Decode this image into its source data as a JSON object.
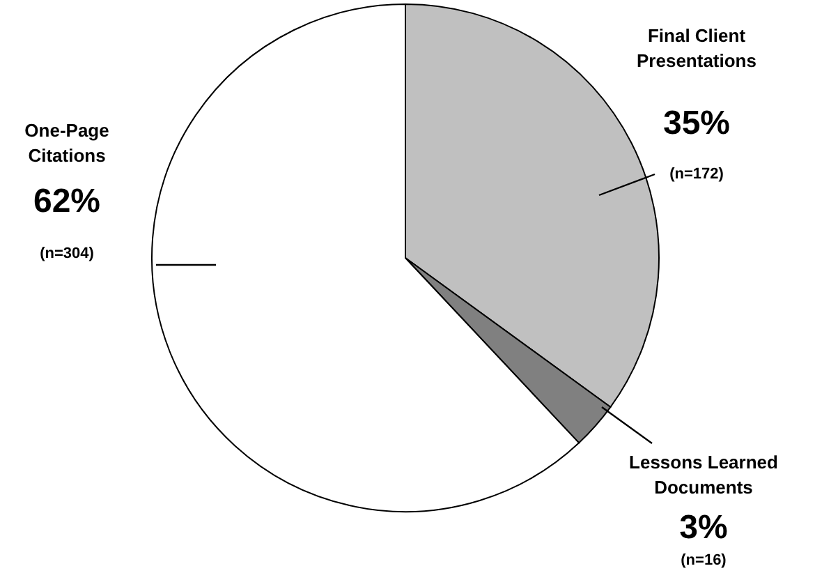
{
  "chart_data": {
    "type": "pie",
    "categories": [
      "Final Client Presentations",
      "Lessons Learned Documents",
      "One-Page Citations"
    ],
    "values": [
      35,
      3,
      62
    ],
    "value_labels": [
      "35%",
      "3%",
      "62%"
    ],
    "colors": [
      "#c0c0c0",
      "#808080",
      "#ffffff"
    ],
    "annotations": [
      "(n=172)",
      "(n=16)",
      "(n=304)"
    ]
  }
}
